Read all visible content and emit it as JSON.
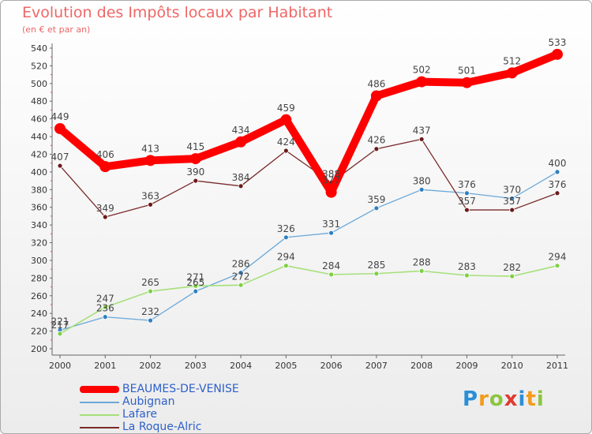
{
  "title": "Evolution des Impôts locaux par Habitant",
  "subtitle": "(en € et par an)",
  "logo": {
    "text": "Proxiti",
    "letters": [
      {
        "ch": "P",
        "color": "#2b8fd6"
      },
      {
        "ch": "r",
        "color": "#f29b1d"
      },
      {
        "ch": "o",
        "color": "#8cc540"
      },
      {
        "ch": "x",
        "color": "#e03a2f"
      },
      {
        "ch": "i",
        "color": "#2b8fd6"
      },
      {
        "ch": "t",
        "color": "#f29b1d"
      },
      {
        "ch": "i",
        "color": "#8cc540"
      }
    ]
  },
  "chart_data": {
    "type": "line",
    "x": [
      "2000",
      "2001",
      "2002",
      "2003",
      "2004",
      "2005",
      "2006",
      "2007",
      "2008",
      "2009",
      "2010",
      "2011"
    ],
    "ylim": [
      200,
      540
    ],
    "yticks": [
      200,
      220,
      240,
      260,
      280,
      300,
      320,
      340,
      360,
      380,
      400,
      420,
      440,
      460,
      480,
      500,
      520,
      540
    ],
    "grid": false,
    "legend_position": "bottom-left",
    "series": [
      {
        "name": "BEAUMES-DE-VENISE",
        "color": "#ff0000",
        "point_color": "#ff0000",
        "values": [
          449,
          406,
          413,
          415,
          434,
          459,
          377,
          486,
          502,
          501,
          512,
          533
        ],
        "labels": [
          "449",
          "406",
          "413",
          "415",
          "434",
          "459",
          "377",
          "486",
          "502",
          "501",
          "512",
          "533"
        ]
      },
      {
        "name": "Aubignan",
        "color": "#6aa8d8",
        "point_color": "#2f7fc0",
        "values": [
          221,
          236,
          232,
          265,
          286,
          326,
          331,
          359,
          380,
          376,
          370,
          400
        ],
        "labels": [
          "221",
          "236",
          "232",
          "265",
          "286",
          "326",
          "331",
          "359",
          "380",
          "376",
          "370",
          "400"
        ]
      },
      {
        "name": "Lafare",
        "color": "#a6e07a",
        "point_color": "#7fcf45",
        "values": [
          217,
          247,
          265,
          271,
          272,
          294,
          284,
          285,
          288,
          283,
          282,
          294
        ],
        "labels": [
          "217",
          "247",
          "265",
          "271",
          "272",
          "294",
          "284",
          "285",
          "288",
          "283",
          "282",
          "294"
        ]
      },
      {
        "name": "La Roque-Alric",
        "color": "#7a2a2a",
        "point_color": "#6b1a1a",
        "values": [
          407,
          349,
          363,
          390,
          384,
          424,
          388,
          426,
          437,
          357,
          357,
          376
        ],
        "labels": [
          "407",
          "349",
          "363",
          "390",
          "384",
          "424",
          "388",
          "426",
          "437",
          "357",
          "357",
          "376"
        ]
      }
    ]
  }
}
